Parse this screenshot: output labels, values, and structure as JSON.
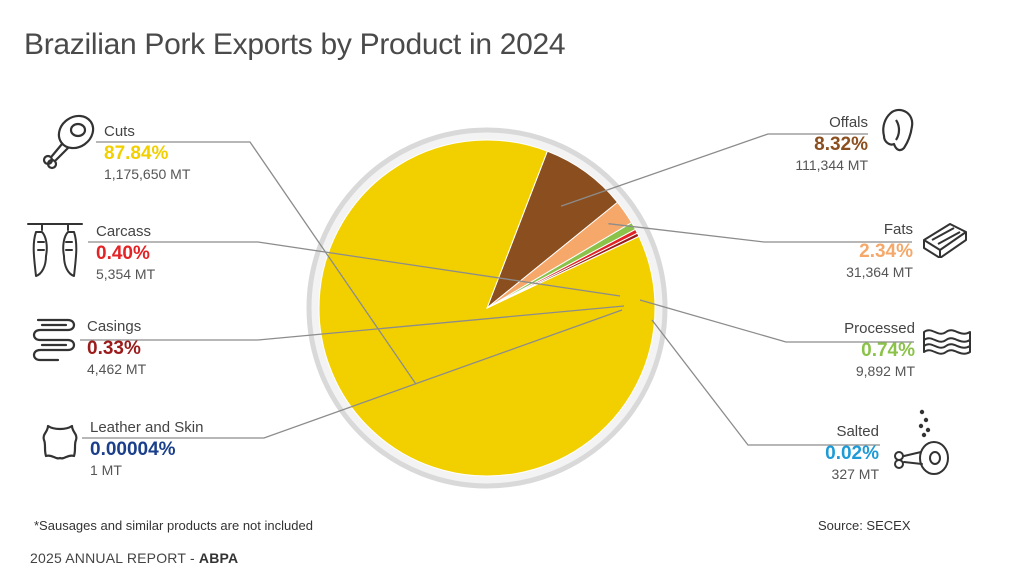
{
  "header": {
    "title": "Brazilian Pork Exports by Product in 2024"
  },
  "footer": {
    "note": "*Sausages and similar products are not included",
    "source": "Source: SECEX",
    "report_prefix": "2025 ANNUAL REPORT - ",
    "report_org": "ABPA"
  },
  "icons": {
    "cuts": "ham-leg-icon",
    "carcass": "hanging-carcass-icon",
    "casings": "intestines-icon",
    "leather": "hide-icon",
    "offals": "liver-icon",
    "fats": "bacon-slab-icon",
    "processed": "bacon-strip-icon",
    "salted": "salted-ham-icon"
  },
  "chart_data": {
    "type": "pie",
    "title": "Brazilian Pork Exports by Product in 2024",
    "start_angle_deg": 39,
    "direction": "counterclockwise",
    "slices": [
      {
        "key": "offals",
        "name": "Offals",
        "value": 8.32,
        "pct_label": "8.32%",
        "volume": "111,344 MT",
        "color": "#8b4e1e"
      },
      {
        "key": "cuts",
        "name": "Cuts",
        "value": 87.84,
        "pct_label": "87.84%",
        "volume": "1,175,650 MT",
        "color": "#f2d000"
      },
      {
        "key": "salted",
        "name": "Salted",
        "value": 0.02,
        "pct_label": "0.02%",
        "volume": "327 MT",
        "color": "#1e9bd7"
      },
      {
        "key": "leather",
        "name": "Leather and Skin",
        "value": 4e-05,
        "pct_label": "0.00004%",
        "volume": "1 MT",
        "color": "#1b3f8b"
      },
      {
        "key": "casings",
        "name": "Casings",
        "value": 0.33,
        "pct_label": "0.33%",
        "volume": "4,462 MT",
        "color": "#9b1b1b"
      },
      {
        "key": "carcass",
        "name": "Carcass",
        "value": 0.4,
        "pct_label": "0.40%",
        "volume": "5,354 MT",
        "color": "#e32326"
      },
      {
        "key": "processed",
        "name": "Processed",
        "value": 0.74,
        "pct_label": "0.74%",
        "volume": "9,892 MT",
        "color": "#8bc34a"
      },
      {
        "key": "fats",
        "name": "Fats",
        "value": 2.34,
        "pct_label": "2.34%",
        "volume": "31,364 MT",
        "color": "#f5a86a"
      }
    ]
  }
}
